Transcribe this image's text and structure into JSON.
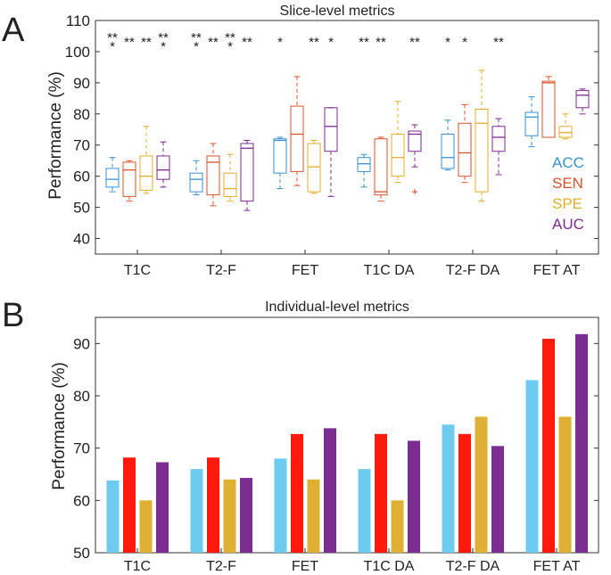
{
  "colors": {
    "acc_box": "#3a92d0",
    "sen_box": "#d9532b",
    "spe_box": "#e3ad2e",
    "auc_box": "#7b2c8f",
    "acc_bar": "#6ccbee",
    "sen_bar": "#ff1a0d",
    "spe_bar": "#dfb033",
    "auc_bar": "#7b2d92",
    "outlier": "#e53b2b"
  },
  "chart_data": [
    {
      "panel_label": "A",
      "type": "box",
      "title": "Slice-level metrics",
      "ylabel": "Performance (%)",
      "ylim": [
        35,
        110
      ],
      "yticks": [
        40,
        50,
        60,
        70,
        80,
        90,
        100,
        110
      ],
      "categories": [
        "T1C",
        "T2-F",
        "FET",
        "T1C DA",
        "T2-F DA",
        "FET AT"
      ],
      "legend": [
        "ACC",
        "SEN",
        "SPE",
        "AUC"
      ],
      "series": [
        {
          "name": "ACC",
          "boxes": [
            {
              "whislo": 55,
              "q1": 56.5,
              "med": 59,
              "q3": 62.5,
              "whishi": 66
            },
            {
              "whislo": 54,
              "q1": 55,
              "med": 59,
              "q3": 61,
              "whishi": 65
            },
            {
              "whislo": 56,
              "q1": 61,
              "med": 71.5,
              "q3": 72,
              "whishi": 72.5
            },
            {
              "whislo": 56.5,
              "q1": 61.5,
              "med": 64,
              "q3": 66,
              "whishi": 67
            },
            {
              "whislo": 62,
              "q1": 62.5,
              "med": 66,
              "q3": 73.5,
              "whishi": 78
            },
            {
              "whislo": 69.5,
              "q1": 73,
              "med": 79,
              "q3": 80.5,
              "whishi": 85.5
            }
          ],
          "outliers": [
            [],
            [],
            [],
            [],
            [],
            []
          ]
        },
        {
          "name": "SEN",
          "boxes": [
            {
              "whislo": 52,
              "q1": 53.5,
              "med": 62,
              "q3": 64.5,
              "whishi": 65
            },
            {
              "whislo": 50.5,
              "q1": 54,
              "med": 64.5,
              "q3": 66.5,
              "whishi": 70.5
            },
            {
              "whislo": 57,
              "q1": 61.5,
              "med": 73.5,
              "q3": 82.5,
              "whishi": 92
            },
            {
              "whislo": 52,
              "q1": 54,
              "med": 55,
              "q3": 72,
              "whishi": 72.5
            },
            {
              "whislo": 58,
              "q1": 60,
              "med": 67.5,
              "q3": 77,
              "whishi": 83
            },
            {
              "whislo": 72.5,
              "q1": 72.5,
              "med": 90,
              "q3": 90.5,
              "whishi": 92
            }
          ],
          "outliers": [
            [],
            [],
            [],
            [],
            [],
            []
          ]
        },
        {
          "name": "SPE",
          "boxes": [
            {
              "whislo": 54.5,
              "q1": 55.5,
              "med": 60,
              "q3": 66.5,
              "whishi": 76
            },
            {
              "whislo": 52,
              "q1": 53.5,
              "med": 56,
              "q3": 61,
              "whishi": 67
            },
            {
              "whislo": 54.5,
              "q1": 55,
              "med": 63,
              "q3": 70.5,
              "whishi": 71.5
            },
            {
              "whislo": 58,
              "q1": 60,
              "med": 66,
              "q3": 73.5,
              "whishi": 84
            },
            {
              "whislo": 52,
              "q1": 55,
              "med": 77,
              "q3": 81.5,
              "whishi": 94
            },
            {
              "whislo": 72,
              "q1": 72.5,
              "med": 74,
              "q3": 76,
              "whishi": 80
            }
          ],
          "outliers": [
            [],
            [],
            [],
            [],
            [],
            []
          ]
        },
        {
          "name": "AUC",
          "boxes": [
            {
              "whislo": 56.5,
              "q1": 59,
              "med": 62,
              "q3": 66.5,
              "whishi": 71
            },
            {
              "whislo": 49,
              "q1": 52,
              "med": 69,
              "q3": 70.5,
              "whishi": 71.5
            },
            {
              "whislo": 53.5,
              "q1": 68,
              "med": 76,
              "q3": 82,
              "whishi": 82
            },
            {
              "whislo": 63,
              "q1": 68,
              "med": 73.5,
              "q3": 74.5,
              "whishi": 76.5
            },
            {
              "whislo": 60.5,
              "q1": 68,
              "med": 72.5,
              "q3": 76,
              "whishi": 78.5
            },
            {
              "whislo": 80,
              "q1": 82,
              "med": 86,
              "q3": 87.5,
              "whishi": 88
            }
          ],
          "outliers": [
            [],
            [],
            [],
            [
              55
            ],
            [],
            []
          ]
        }
      ],
      "significance": [
        [
          "***",
          "**",
          "**",
          "***"
        ],
        [
          "***",
          "**",
          "***",
          "**"
        ],
        [
          "*",
          "",
          "**",
          "*"
        ],
        [
          "**",
          "**",
          "",
          "**"
        ],
        [
          "*",
          "*",
          "",
          "**"
        ],
        [
          "",
          "",
          "",
          ""
        ]
      ]
    },
    {
      "panel_label": "B",
      "type": "bar",
      "title": "Individual-level metrics",
      "ylabel": "Performance (%)",
      "ylim": [
        50,
        95
      ],
      "yticks": [
        50,
        60,
        70,
        80,
        90
      ],
      "categories": [
        "T1C",
        "T2-F",
        "FET",
        "T1C DA",
        "T2-F DA",
        "FET AT"
      ],
      "series": [
        {
          "name": "ACC",
          "values": [
            63.8,
            66,
            68,
            66,
            74.5,
            83
          ]
        },
        {
          "name": "SEN",
          "values": [
            68.2,
            68.2,
            72.7,
            72.7,
            72.7,
            90.9
          ]
        },
        {
          "name": "SPE",
          "values": [
            60,
            64,
            64,
            60,
            76,
            76
          ]
        },
        {
          "name": "AUC",
          "values": [
            67.3,
            64.3,
            73.8,
            71.4,
            70.4,
            91.8
          ]
        }
      ]
    }
  ]
}
